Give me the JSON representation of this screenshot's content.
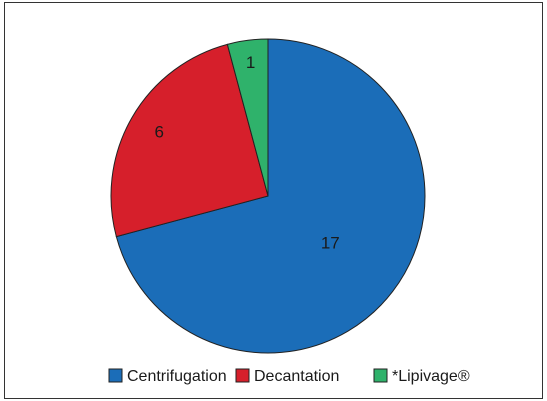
{
  "chart_data": {
    "type": "pie",
    "categories": [
      "Centrifugation",
      "Decantation",
      "*Lipivage®"
    ],
    "values": [
      17,
      6,
      1
    ],
    "colors": [
      "#1b6db8",
      "#d61f2b",
      "#2fb26b"
    ],
    "legend": "bottom"
  }
}
